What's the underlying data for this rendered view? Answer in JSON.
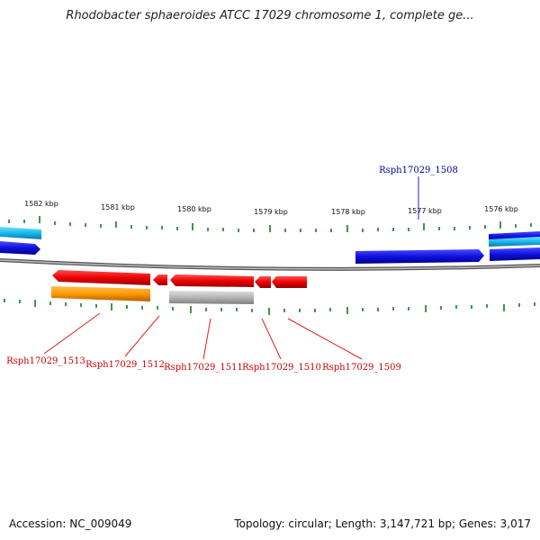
{
  "title": "Rhodobacter sphaeroides ATCC 17029 chromosome 1, complete ge...",
  "footer": {
    "accession": "Accession: NC_009049",
    "summary": "Topology: circular; Length: 3,147,721 bp; Genes: 3,017"
  },
  "colors": {
    "blue": "#1010e0",
    "cyan": "#18b8e8",
    "red": "#ee0000",
    "orange": "#ff9900",
    "gray": "#b4b4b4",
    "backbone": "#888888",
    "tick": "#1a7a1a",
    "label_red": "#cc0000",
    "label_blue": "#0000aa"
  },
  "scale_labels": [
    "1582 kbp",
    "1581 kbp",
    "1580 kbp",
    "1579 kbp",
    "1578 kbp",
    "1577 kbp",
    "1576 kbp"
  ],
  "gene_labels": [
    {
      "text": "Rsph17029_1508",
      "color": "label_blue"
    },
    {
      "text": "Rsph17029_1509",
      "color": "label_red"
    },
    {
      "text": "Rsph17029_1510",
      "color": "label_red"
    },
    {
      "text": "Rsph17029_1511",
      "color": "label_red"
    },
    {
      "text": "Rsph17029_1512",
      "color": "label_red"
    },
    {
      "text": "Rsph17029_1513",
      "color": "label_red"
    }
  ]
}
